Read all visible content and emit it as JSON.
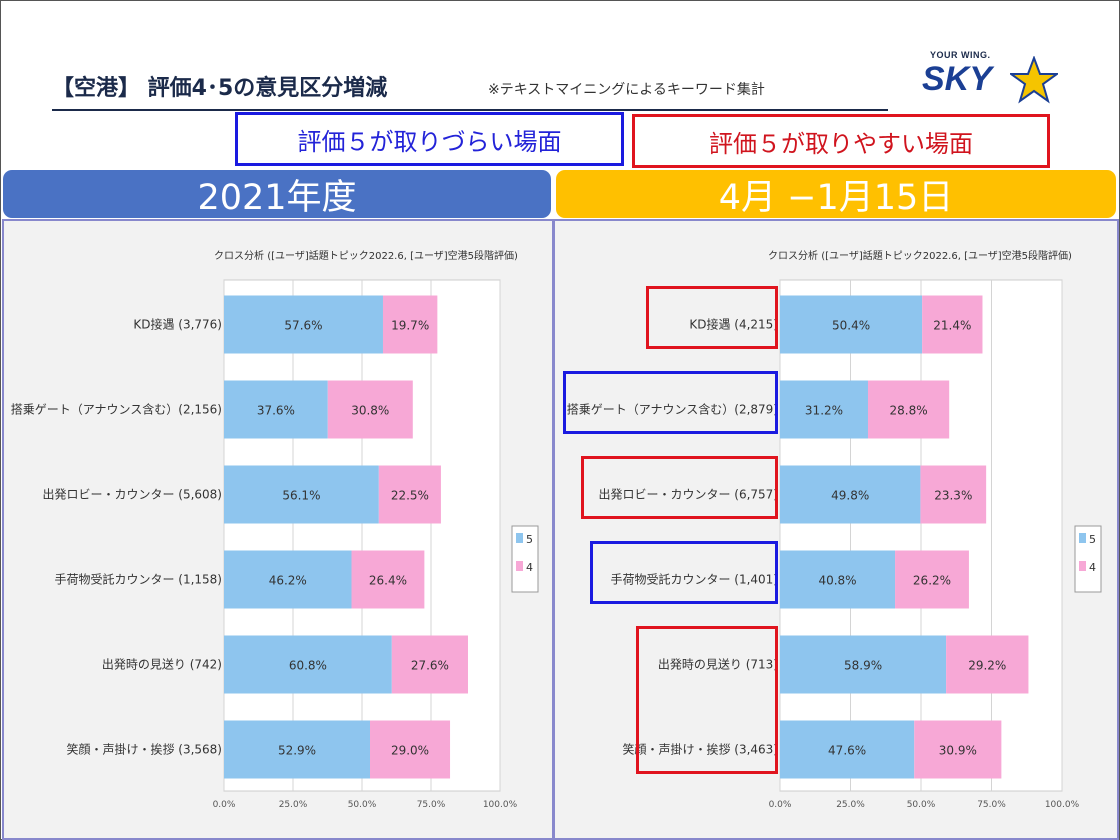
{
  "header": {
    "title": "【空港】 評価4･5の意見区分増減",
    "subtitle": "※テキストマイニングによるキーワード集計",
    "logo_tagline": "YOUR WING.",
    "logo_text": "SKY"
  },
  "legend_boxes": {
    "hard": "評価５が取りづらい場面",
    "easy": "評価５が取りやすい場面"
  },
  "colors": {
    "series5": "#8ec5ee",
    "series4": "#f7a8d6",
    "hard_border": "#1a1ae0",
    "easy_border": "#e0141e",
    "period_left": "#4a72c4",
    "period_right": "#ffc000"
  },
  "chart_data": [
    {
      "type": "bar",
      "orientation": "horizontal",
      "stacked": true,
      "period": "2021年度",
      "title": "クロス分析 ([ユーザ]話題トピック2022.6, [ユーザ]空港5段階評価)",
      "categories": [
        "KD接遇 (3,776)",
        "搭乗ゲート（アナウンス含む）(2,156)",
        "出発ロビー・カウンター (5,608)",
        "手荷物受託カウンター (1,158)",
        "出発時の見送り (742)",
        "笑顔・声掛け・挨拶 (3,568)"
      ],
      "series": [
        {
          "name": "5",
          "values": [
            57.6,
            37.6,
            56.1,
            46.2,
            60.8,
            52.9
          ],
          "labels": [
            "57.6%",
            "37.6%",
            "56.1%",
            "46.2%",
            "60.8%",
            "52.9%"
          ]
        },
        {
          "name": "4",
          "values": [
            19.7,
            30.8,
            22.5,
            26.4,
            27.6,
            29.0
          ],
          "labels": [
            "19.7%",
            "30.8%",
            "22.5%",
            "26.4%",
            "27.6%",
            "29.0%"
          ]
        }
      ],
      "xlim": [
        0,
        100
      ],
      "xticks": [
        "0.0%",
        "25.0%",
        "50.0%",
        "75.0%",
        "100.0%"
      ],
      "legend": "right",
      "grid": true
    },
    {
      "type": "bar",
      "orientation": "horizontal",
      "stacked": true,
      "period": "4月 −1月15日",
      "title": "クロス分析 ([ユーザ]話題トピック2022.6, [ユーザ]空港5段階評価)",
      "categories": [
        "KD接遇 (4,215)",
        "搭乗ゲート（アナウンス含む）(2,879)",
        "出発ロビー・カウンター (6,757)",
        "手荷物受託カウンター (1,401)",
        "出発時の見送り (713)",
        "笑顔・声掛け・挨拶 (3,463)"
      ],
      "series": [
        {
          "name": "5",
          "values": [
            50.4,
            31.2,
            49.8,
            40.8,
            58.9,
            47.6
          ],
          "labels": [
            "50.4%",
            "31.2%",
            "49.8%",
            "40.8%",
            "58.9%",
            "47.6%"
          ]
        },
        {
          "name": "4",
          "values": [
            21.4,
            28.8,
            23.3,
            26.2,
            29.2,
            30.9
          ],
          "labels": [
            "21.4%",
            "28.8%",
            "23.3%",
            "26.2%",
            "29.2%",
            "30.9%"
          ]
        }
      ],
      "xlim": [
        0,
        100
      ],
      "xticks": [
        "0.0%",
        "25.0%",
        "50.0%",
        "75.0%",
        "100.0%"
      ],
      "legend": "right",
      "grid": true,
      "highlights": [
        {
          "category_index": 0,
          "kind": "easy"
        },
        {
          "category_index": 1,
          "kind": "hard"
        },
        {
          "category_index": 2,
          "kind": "easy"
        },
        {
          "category_index": 3,
          "kind": "hard"
        },
        {
          "category_index": 4,
          "kind": "easy",
          "span": 2
        }
      ]
    }
  ]
}
